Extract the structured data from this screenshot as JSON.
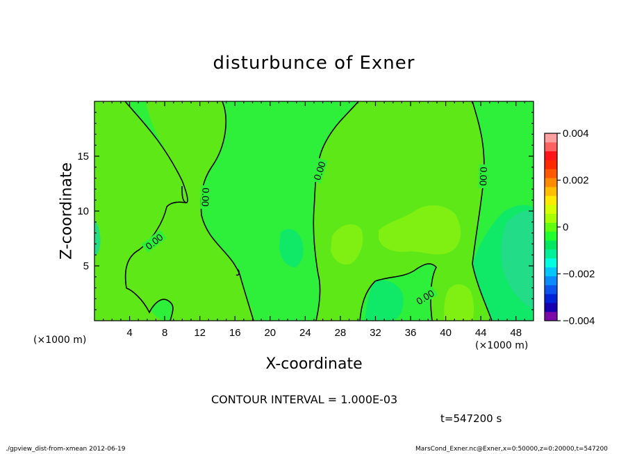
{
  "chart_data": {
    "type": "heatmap",
    "title": "disturbunce of Exner",
    "xlabel": "X-coordinate",
    "ylabel": "Z-coordinate",
    "x_unit_label": "(×1000 m)",
    "xlim": [
      0,
      50
    ],
    "ylim": [
      0,
      20
    ],
    "xticks": [
      4,
      8,
      12,
      16,
      20,
      24,
      28,
      32,
      36,
      40,
      44,
      48
    ],
    "yticks": [
      5,
      10,
      15
    ],
    "colorbar": {
      "range": [
        -0.004,
        0.004
      ],
      "tick_labels": [
        "0.004",
        "0.002",
        "0",
        "−0.002",
        "−0.004"
      ],
      "tick_values": [
        0.004,
        0.002,
        0,
        -0.002,
        -0.004
      ],
      "colors": [
        "#7b0aa8",
        "#1600b0",
        "#0022d8",
        "#0a55ee",
        "#0a8cff",
        "#00c8ff",
        "#00ffe0",
        "#00f09a",
        "#00e860",
        "#20ff30",
        "#60ff10",
        "#a8ff00",
        "#d6ff00",
        "#ffea00",
        "#ffbe00",
        "#ff8c00",
        "#ff5a00",
        "#ff2a00",
        "#ff1418",
        "#ff6060",
        "#ffa0a0"
      ]
    },
    "contour_labels": [
      "0.00",
      "0.00",
      "0.00",
      "0.00",
      "0.00"
    ],
    "contour_interval_text": "CONTOUR INTERVAL = 1.000E-03",
    "time_text": "t=547200 s"
  },
  "footer": {
    "left": "./gpview_dist-from-xmean  2012-06-19",
    "right": "MarsCond_Exner.nc@Exner,x=0:50000,z=0:20000,t=547200"
  },
  "colors": {
    "background_field": "#2ef03a",
    "positive_region": "#5ee818",
    "strong_positive": "#80f012",
    "negative_region": "#10e868",
    "strong_negative": "#22dc88"
  }
}
